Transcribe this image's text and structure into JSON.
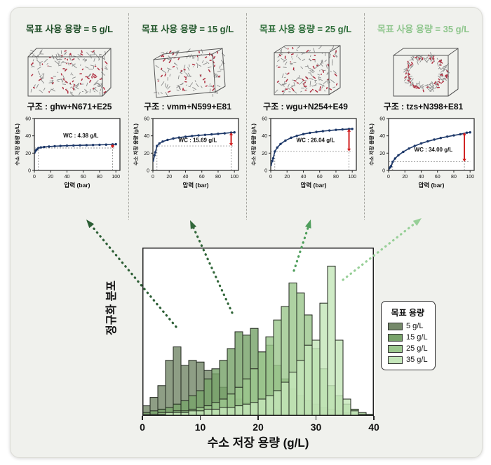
{
  "figure": {
    "card_bg": "#f0f1ed",
    "card_border": "#dcdcd6",
    "curve_color": "#1d3869",
    "wc_arrow_color": "#d01f1f"
  },
  "panels": [
    {
      "title": "목표 사용 용량 = 5 g/L",
      "title_color": "#1e4d27",
      "structure_label": "구조 : ghw+N671+E25",
      "molecule_icon": "molecular-framework-box"
    },
    {
      "title": "목표 사용 용량 = 15 g/L",
      "title_color": "#25592e",
      "structure_label": "구조 : vmm+N599+E81",
      "molecule_icon": "molecular-framework-skewed-box"
    },
    {
      "title": "목표 사용 용량 = 25 g/L",
      "title_color": "#2e6e3a",
      "structure_label": "구조 : wgu+N254+E49",
      "molecule_icon": "molecular-framework-cube"
    },
    {
      "title": "목표 사용 용량 = 35 g/L",
      "title_color": "#8fc68d",
      "structure_label": "구조 : tzs+N398+E81",
      "molecule_icon": "molecular-framework-ring-pore"
    }
  ],
  "chart_data": [
    {
      "type": "line",
      "panel": 0,
      "xlabel": "압력 (bar)",
      "ylabel": "수소 저장 용량 (g/L)",
      "xlim": [
        0,
        105
      ],
      "ylim": [
        0,
        60
      ],
      "xticks": [
        0,
        20,
        40,
        60,
        80,
        100
      ],
      "yticks": [
        0,
        20,
        40,
        60
      ],
      "x": [
        0.5,
        1,
        2,
        3,
        5,
        8,
        12,
        18,
        25,
        32,
        40,
        48,
        56,
        64,
        72,
        80,
        88,
        96,
        100
      ],
      "y": [
        19.5,
        21,
        23.2,
        24.3,
        25.92,
        26.6,
        27.1,
        27.6,
        28.0,
        28.3,
        28.6,
        28.8,
        29.0,
        29.2,
        29.4,
        29.6,
        29.8,
        30.1,
        30.3
      ],
      "wc_label": "WC : 4.38 g/L",
      "wc_value": 4.38,
      "uptake_at_5bar": 25.92,
      "uptake_at_100bar": 30.3,
      "arrow_x": 96,
      "label_x": 57,
      "label_y": 38
    },
    {
      "type": "line",
      "panel": 1,
      "xlabel": "압력 (bar)",
      "ylabel": "수소 저장 용량 (g/L)",
      "xlim": [
        0,
        105
      ],
      "ylim": [
        0,
        60
      ],
      "xticks": [
        0,
        20,
        40,
        60,
        80,
        100
      ],
      "yticks": [
        0,
        20,
        40,
        60
      ],
      "x": [
        0.5,
        1,
        2,
        3,
        5,
        8,
        12,
        18,
        25,
        32,
        40,
        48,
        56,
        64,
        72,
        80,
        88,
        96,
        100
      ],
      "y": [
        10,
        13,
        17.5,
        21,
        28.31,
        31.2,
        33.4,
        35.3,
        36.9,
        38.0,
        39.0,
        39.8,
        40.5,
        41.1,
        41.7,
        42.3,
        42.9,
        43.7,
        44.0
      ],
      "wc_label": "WC : 15.69 g/L",
      "wc_value": 15.69,
      "uptake_at_5bar": 28.31,
      "uptake_at_100bar": 44.0,
      "arrow_x": 96,
      "label_x": 55,
      "label_y": 33
    },
    {
      "type": "line",
      "panel": 2,
      "xlabel": "압력 (bar)",
      "ylabel": "수소 저장 용량 (g/L)",
      "xlim": [
        0,
        105
      ],
      "ylim": [
        0,
        60
      ],
      "xticks": [
        0,
        20,
        40,
        60,
        80,
        100
      ],
      "yticks": [
        0,
        20,
        40,
        60
      ],
      "x": [
        0.5,
        1,
        2,
        3,
        5,
        8,
        12,
        18,
        25,
        32,
        40,
        48,
        56,
        64,
        72,
        80,
        88,
        96,
        100
      ],
      "y": [
        5,
        8,
        11,
        14,
        21.96,
        26.5,
        30.5,
        34.5,
        37.8,
        40.0,
        42.0,
        43.4,
        44.5,
        45.4,
        46.2,
        46.9,
        47.4,
        47.9,
        48.0
      ],
      "wc_label": "WC : 26.04 g/L",
      "wc_value": 26.04,
      "uptake_at_5bar": 21.96,
      "uptake_at_100bar": 48.0,
      "arrow_x": 96,
      "label_x": 55,
      "label_y": 33
    },
    {
      "type": "line",
      "panel": 3,
      "xlabel": "압력 (bar)",
      "ylabel": "수소 저장 용량 (g/L)",
      "xlim": [
        0,
        105
      ],
      "ylim": [
        0,
        60
      ],
      "xticks": [
        0,
        20,
        40,
        60,
        80,
        100
      ],
      "yticks": [
        0,
        20,
        40,
        60
      ],
      "x": [
        0.5,
        1,
        2,
        3,
        5,
        8,
        12,
        18,
        25,
        32,
        40,
        48,
        56,
        64,
        72,
        80,
        88,
        96,
        100
      ],
      "y": [
        1,
        2,
        3.5,
        5,
        10.0,
        13.8,
        17.5,
        21.5,
        25.3,
        28.3,
        31.2,
        33.6,
        35.7,
        37.5,
        39.1,
        40.5,
        41.8,
        43.6,
        44.0
      ],
      "wc_label": "WC : 34.00 g/L",
      "wc_value": 34.0,
      "uptake_at_5bar": 10.0,
      "uptake_at_100bar": 44.0,
      "arrow_x": 93,
      "label_x": 55,
      "label_y": 22
    },
    {
      "type": "histogram-overlay",
      "xlabel": "수소 저장 용량 (g/L)",
      "ylabel": "정규화 분포",
      "xlim": [
        0,
        40
      ],
      "xticks": [
        0,
        10,
        20,
        30,
        40
      ],
      "bin_start": 0,
      "bin_width": 1.3333,
      "grid": false,
      "legend_title": "목표 용량",
      "legend_position": "right",
      "series": [
        {
          "name": "5 g/L",
          "color": "#75896a",
          "values": [
            0.06,
            0.11,
            0.18,
            0.33,
            0.41,
            0.3,
            0.33,
            0.32,
            0.27,
            0.25,
            0.17,
            0.13,
            0.1,
            0.08,
            0.06,
            0.05,
            0.04,
            0.04,
            0.03,
            0.03,
            0.02,
            0.02,
            0.02,
            0.01,
            0.01,
            0.01,
            0.01,
            0,
            0,
            0
          ]
        },
        {
          "name": "15 g/L",
          "color": "#78a36a",
          "values": [
            0.02,
            0.03,
            0.04,
            0.05,
            0.07,
            0.09,
            0.12,
            0.15,
            0.22,
            0.28,
            0.33,
            0.4,
            0.5,
            0.48,
            0.52,
            0.38,
            0.42,
            0.3,
            0.22,
            0.16,
            0.12,
            0.09,
            0.07,
            0.05,
            0.04,
            0.03,
            0.02,
            0.01,
            0.01,
            0
          ]
        },
        {
          "name": "25 g/L",
          "color": "#9cc78e",
          "values": [
            0.01,
            0.01,
            0.02,
            0.02,
            0.03,
            0.03,
            0.04,
            0.05,
            0.06,
            0.08,
            0.1,
            0.13,
            0.17,
            0.22,
            0.28,
            0.38,
            0.47,
            0.57,
            0.65,
            0.79,
            0.73,
            0.6,
            0.4,
            0.28,
            0.18,
            0.12,
            0.07,
            0.04,
            0.02,
            0.01
          ]
        },
        {
          "name": "35 g/L",
          "color": "#c4e6ba",
          "values": [
            0.01,
            0.01,
            0.01,
            0.02,
            0.02,
            0.02,
            0.03,
            0.03,
            0.04,
            0.04,
            0.05,
            0.05,
            0.06,
            0.07,
            0.08,
            0.1,
            0.12,
            0.15,
            0.2,
            0.26,
            0.33,
            0.42,
            0.45,
            0.67,
            0.89,
            0.45,
            0.1,
            0.03,
            0.01,
            0
          ]
        }
      ]
    }
  ],
  "arrows": [
    {
      "from": [
        236,
        455
      ],
      "to": [
        108,
        302
      ],
      "color": "#2c5e35"
    },
    {
      "from": [
        316,
        435
      ],
      "to": [
        256,
        303
      ],
      "color": "#32673a"
    },
    {
      "from": [
        404,
        375
      ],
      "to": [
        428,
        302
      ],
      "color": "#4f9e5c"
    },
    {
      "from": [
        474,
        388
      ],
      "to": [
        586,
        300
      ],
      "color": "#97cf97"
    }
  ]
}
